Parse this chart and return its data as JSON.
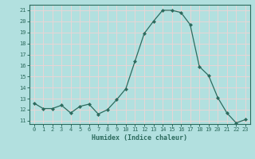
{
  "x": [
    0,
    1,
    2,
    3,
    4,
    5,
    6,
    7,
    8,
    9,
    10,
    11,
    12,
    13,
    14,
    15,
    16,
    17,
    18,
    19,
    20,
    21,
    22,
    23
  ],
  "y": [
    12.6,
    12.1,
    12.1,
    12.4,
    11.7,
    12.3,
    12.5,
    11.6,
    12.0,
    12.9,
    13.9,
    16.4,
    18.9,
    20.0,
    21.0,
    21.0,
    20.8,
    19.7,
    15.9,
    15.1,
    13.1,
    11.7,
    10.8,
    11.1
  ],
  "xlabel": "Humidex (Indice chaleur)",
  "ylim": [
    10.7,
    21.5
  ],
  "yticks": [
    11,
    12,
    13,
    14,
    15,
    16,
    17,
    18,
    19,
    20,
    21
  ],
  "xticks": [
    0,
    1,
    2,
    3,
    4,
    5,
    6,
    7,
    8,
    9,
    10,
    11,
    12,
    13,
    14,
    15,
    16,
    17,
    18,
    19,
    20,
    21,
    22,
    23
  ],
  "line_color": "#2d6b5e",
  "marker_color": "#2d6b5e",
  "bg_color": "#b2e0df",
  "grid_color": "#e8d5d5",
  "tick_label_color": "#2d6b5e",
  "xlabel_color": "#2d6b5e",
  "font_family": "monospace"
}
